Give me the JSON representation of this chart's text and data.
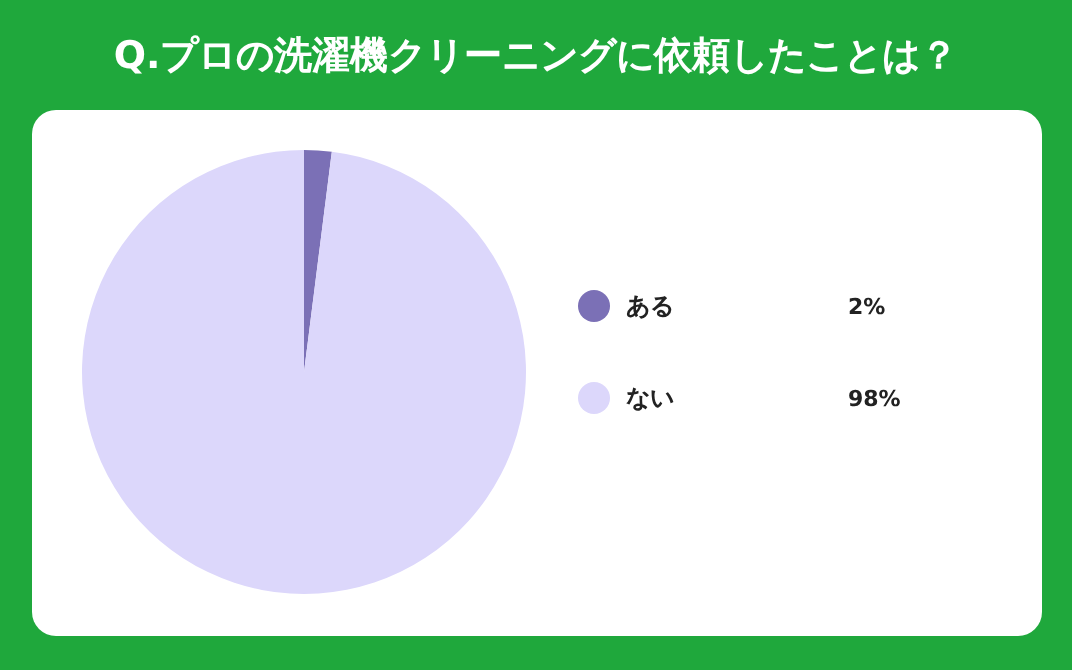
{
  "chart_data": {
    "type": "pie",
    "title": "Q.プロの洗濯機クリーニングに依頼したことは？",
    "categories": [
      "ある",
      "ない"
    ],
    "values": [
      2,
      98
    ],
    "colors": [
      "#7b70b6",
      "#dcd7fb"
    ],
    "value_labels": [
      "2%",
      "98%"
    ],
    "legend": "right"
  }
}
